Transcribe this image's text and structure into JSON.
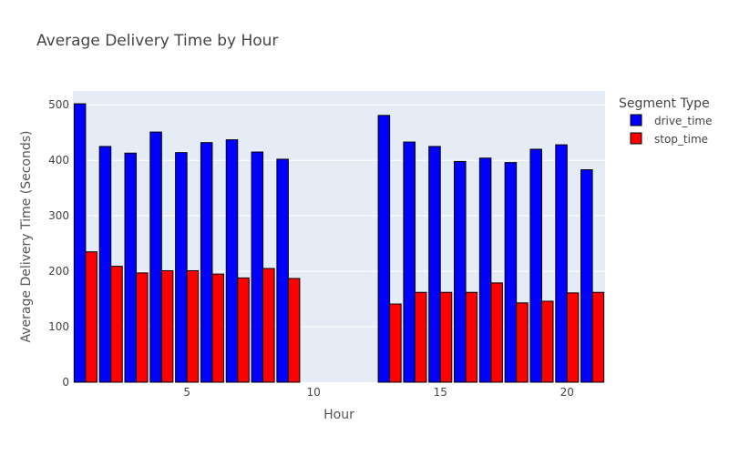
{
  "chart_data": {
    "type": "bar",
    "title": "Average Delivery Time by Hour",
    "xlabel": "Hour",
    "ylabel": "Average Delivery Time (Seconds)",
    "legend_title": "Segment Type",
    "legend_position": "top-right",
    "grid": true,
    "background_color": "#e5ecf6",
    "xlim": [
      0.5,
      21.5
    ],
    "ylim": [
      0,
      525
    ],
    "x_ticks": [
      5,
      10,
      15,
      20
    ],
    "y_ticks": [
      0,
      100,
      200,
      300,
      400,
      500
    ],
    "x": [
      1,
      2,
      3,
      4,
      5,
      6,
      7,
      8,
      9,
      13,
      14,
      15,
      16,
      17,
      18,
      19,
      20,
      21
    ],
    "series": [
      {
        "name": "drive_time",
        "color": "#0000ff",
        "values": [
          502,
          425,
          413,
          451,
          414,
          432,
          437,
          415,
          402,
          481,
          433,
          425,
          398,
          404,
          396,
          420,
          428,
          383
        ]
      },
      {
        "name": "stop_time",
        "color": "#ff0000",
        "values": [
          235,
          209,
          197,
          201,
          201,
          195,
          188,
          205,
          187,
          141,
          162,
          162,
          162,
          179,
          143,
          146,
          161,
          162
        ]
      }
    ]
  }
}
